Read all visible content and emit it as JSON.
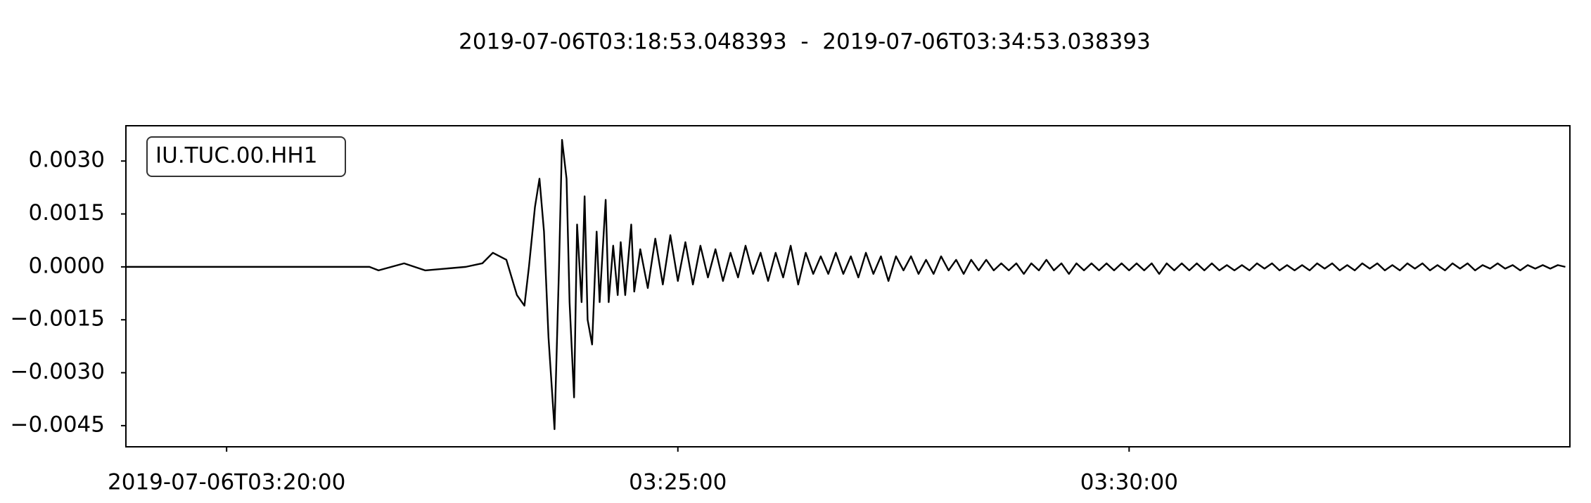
{
  "chart_data": {
    "type": "line",
    "title": "2019-07-06T03:18:53.048393  -  2019-07-06T03:34:53.038393",
    "xlim": [
      "2019-07-06T03:18:53.048393",
      "2019-07-06T03:34:53.038393"
    ],
    "ylim": [
      -0.0051,
      0.004
    ],
    "xticks": [
      "2019-07-06T03:20:00",
      {
        "value": "2019-07-06T03:25:00",
        "label": "03:25:00"
      },
      {
        "value": "2019-07-06T03:30:00",
        "label": "03:30:00"
      }
    ],
    "yticks": [
      {
        "value": 0.003,
        "label": "0.0030"
      },
      {
        "value": 0.0015,
        "label": "0.0015"
      },
      {
        "value": 0,
        "label": "0.0000"
      },
      {
        "value": -0.0015,
        "label": "−0.0015"
      },
      {
        "value": -0.003,
        "label": "−0.0030"
      },
      {
        "value": -0.0045,
        "label": "−0.0045"
      }
    ],
    "grid": false,
    "legend": "upper left",
    "x": [
      "2019-07-06T03:18:53",
      "2019-07-06T03:19:30",
      "2019-07-06T03:20:00",
      "2019-07-06T03:20:30",
      "2019-07-06T03:21:00",
      "2019-07-06T03:21:35",
      "2019-07-06T03:21:41",
      "2019-07-06T03:21:58",
      "2019-07-06T03:22:12",
      "2019-07-06T03:22:39",
      "2019-07-06T03:22:50",
      "2019-07-06T03:22:57",
      "2019-07-06T03:23:06",
      "2019-07-06T03:23:13",
      "2019-07-06T03:23:18",
      "2019-07-06T03:23:21",
      "2019-07-06T03:23:25",
      "2019-07-06T03:23:28",
      "2019-07-06T03:23:31",
      "2019-07-06T03:23:34",
      "2019-07-06T03:23:38",
      "2019-07-06T03:23:41",
      "2019-07-06T03:23:43",
      "2019-07-06T03:23:46",
      "2019-07-06T03:23:48",
      "2019-07-06T03:23:51",
      "2019-07-06T03:23:53",
      "2019-07-06T03:23:56",
      "2019-07-06T03:23:58",
      "2019-07-06T03:24:00",
      "2019-07-06T03:24:03",
      "2019-07-06T03:24:06",
      "2019-07-06T03:24:08",
      "2019-07-06T03:24:12",
      "2019-07-06T03:24:14",
      "2019-07-06T03:24:17",
      "2019-07-06T03:24:20",
      "2019-07-06T03:24:22",
      "2019-07-06T03:24:25",
      "2019-07-06T03:24:29",
      "2019-07-06T03:24:31",
      "2019-07-06T03:24:35",
      "2019-07-06T03:24:40",
      "2019-07-06T03:24:45",
      "2019-07-06T03:24:50",
      "2019-07-06T03:24:55",
      "2019-07-06T03:25:00",
      "2019-07-06T03:25:05",
      "2019-07-06T03:25:10",
      "2019-07-06T03:25:15",
      "2019-07-06T03:25:20",
      "2019-07-06T03:25:25",
      "2019-07-06T03:25:30",
      "2019-07-06T03:25:35",
      "2019-07-06T03:25:40",
      "2019-07-06T03:25:45",
      "2019-07-06T03:25:50",
      "2019-07-06T03:25:55",
      "2019-07-06T03:26:00",
      "2019-07-06T03:26:05",
      "2019-07-06T03:26:10",
      "2019-07-06T03:26:15",
      "2019-07-06T03:26:20",
      "2019-07-06T03:26:25",
      "2019-07-06T03:26:30",
      "2019-07-06T03:26:35",
      "2019-07-06T03:26:40",
      "2019-07-06T03:26:45",
      "2019-07-06T03:26:50",
      "2019-07-06T03:26:55",
      "2019-07-06T03:27:00",
      "2019-07-06T03:27:05",
      "2019-07-06T03:27:10",
      "2019-07-06T03:27:15",
      "2019-07-06T03:27:20",
      "2019-07-06T03:27:25",
      "2019-07-06T03:27:30",
      "2019-07-06T03:27:35",
      "2019-07-06T03:27:40",
      "2019-07-06T03:27:45",
      "2019-07-06T03:27:50",
      "2019-07-06T03:27:55",
      "2019-07-06T03:28:00",
      "2019-07-06T03:28:05",
      "2019-07-06T03:28:10",
      "2019-07-06T03:28:15",
      "2019-07-06T03:28:20",
      "2019-07-06T03:28:25",
      "2019-07-06T03:28:30",
      "2019-07-06T03:28:35",
      "2019-07-06T03:28:40",
      "2019-07-06T03:28:45",
      "2019-07-06T03:28:50",
      "2019-07-06T03:28:55",
      "2019-07-06T03:29:00",
      "2019-07-06T03:29:05",
      "2019-07-06T03:29:10",
      "2019-07-06T03:29:15",
      "2019-07-06T03:29:20",
      "2019-07-06T03:29:25",
      "2019-07-06T03:29:30",
      "2019-07-06T03:29:35",
      "2019-07-06T03:29:40",
      "2019-07-06T03:29:45",
      "2019-07-06T03:29:50",
      "2019-07-06T03:29:55",
      "2019-07-06T03:30:00",
      "2019-07-06T03:30:05",
      "2019-07-06T03:30:10",
      "2019-07-06T03:30:15",
      "2019-07-06T03:30:20",
      "2019-07-06T03:30:25",
      "2019-07-06T03:30:30",
      "2019-07-06T03:30:35",
      "2019-07-06T03:30:40",
      "2019-07-06T03:30:45",
      "2019-07-06T03:30:50",
      "2019-07-06T03:30:55",
      "2019-07-06T03:31:00",
      "2019-07-06T03:31:05",
      "2019-07-06T03:31:10",
      "2019-07-06T03:31:15",
      "2019-07-06T03:31:20",
      "2019-07-06T03:31:25",
      "2019-07-06T03:31:30",
      "2019-07-06T03:31:35",
      "2019-07-06T03:31:40",
      "2019-07-06T03:31:45",
      "2019-07-06T03:31:50",
      "2019-07-06T03:31:55",
      "2019-07-06T03:32:00",
      "2019-07-06T03:32:05",
      "2019-07-06T03:32:10",
      "2019-07-06T03:32:15",
      "2019-07-06T03:32:20",
      "2019-07-06T03:32:25",
      "2019-07-06T03:32:30",
      "2019-07-06T03:32:35",
      "2019-07-06T03:32:40",
      "2019-07-06T03:32:45",
      "2019-07-06T03:32:50",
      "2019-07-06T03:32:55",
      "2019-07-06T03:33:00",
      "2019-07-06T03:33:05",
      "2019-07-06T03:33:10",
      "2019-07-06T03:33:15",
      "2019-07-06T03:33:20",
      "2019-07-06T03:33:25",
      "2019-07-06T03:33:30",
      "2019-07-06T03:33:35",
      "2019-07-06T03:33:40",
      "2019-07-06T03:33:45",
      "2019-07-06T03:33:50",
      "2019-07-06T03:33:55",
      "2019-07-06T03:34:00",
      "2019-07-06T03:34:05",
      "2019-07-06T03:34:10",
      "2019-07-06T03:34:15",
      "2019-07-06T03:34:20",
      "2019-07-06T03:34:25",
      "2019-07-06T03:34:30",
      "2019-07-06T03:34:35",
      "2019-07-06T03:34:40",
      "2019-07-06T03:34:45",
      "2019-07-06T03:34:50"
    ],
    "series": [
      {
        "name": "IU.TUC.00.HH1",
        "color": "#000000",
        "values": [
          0,
          0,
          0,
          0,
          0,
          0,
          -0.0001,
          0.0001,
          -0.0001,
          0,
          0.0001,
          0.0004,
          0.0002,
          -0.0008,
          -0.0011,
          0,
          0.0017,
          0.0025,
          0.001,
          -0.002,
          -0.0046,
          0,
          0.0036,
          0.0025,
          -0.001,
          -0.0037,
          0.0012,
          -0.001,
          0.002,
          -0.0015,
          -0.0022,
          0.001,
          -0.001,
          0.0019,
          -0.001,
          0.0006,
          -0.0008,
          0.0007,
          -0.0008,
          0.0012,
          -0.0007,
          0.0005,
          -0.0006,
          0.0008,
          -0.0005,
          0.0009,
          -0.0004,
          0.0007,
          -0.0005,
          0.0006,
          -0.0003,
          0.0005,
          -0.0004,
          0.0004,
          -0.0003,
          0.0006,
          -0.0002,
          0.0004,
          -0.0004,
          0.0004,
          -0.0003,
          0.0006,
          -0.0005,
          0.0004,
          -0.0002,
          0.0003,
          -0.0002,
          0.0004,
          -0.0002,
          0.0003,
          -0.0003,
          0.0004,
          -0.0002,
          0.0003,
          -0.0004,
          0.0003,
          -0.0001,
          0.0003,
          -0.0002,
          0.0002,
          -0.0002,
          0.0003,
          -0.0001,
          0.0002,
          -0.0002,
          0.0002,
          -0.0001,
          0.0002,
          -0.0001,
          0.0001,
          -0.0001,
          0.0001,
          -0.0002,
          0.0001,
          -0.0001,
          0.0002,
          -0.0001,
          0.0001,
          -0.0002,
          0.0001,
          -0.0001,
          0.0001,
          -0.0001,
          0.0001,
          -0.0001,
          0.0001,
          -0.0001,
          0.0001,
          -0.0001,
          0.0001,
          -0.0002,
          0.0001,
          -0.0001,
          0.0001,
          -0.0001,
          0.0001,
          -0.0001,
          0.0001,
          -0.0001,
          5e-05,
          -0.0001,
          5e-05,
          -0.0001,
          0.0001,
          -5e-05,
          0.0001,
          -0.0001,
          5e-05,
          -0.0001,
          5e-05,
          -0.0001,
          0.0001,
          -5e-05,
          0.0001,
          -0.0001,
          5e-05,
          -0.0001,
          0.0001,
          -5e-05,
          0.0001,
          -0.0001,
          5e-05,
          -0.0001,
          0.0001,
          -5e-05,
          0.0001,
          -0.0001,
          5e-05,
          -0.0001,
          0.0001,
          -5e-05,
          0.0001,
          -0.0001,
          5e-05,
          -5e-05,
          0.0001,
          -5e-05,
          5e-05,
          -0.0001,
          5e-05,
          -5e-05,
          5e-05,
          -5e-05,
          5e-05,
          0
        ]
      }
    ]
  }
}
